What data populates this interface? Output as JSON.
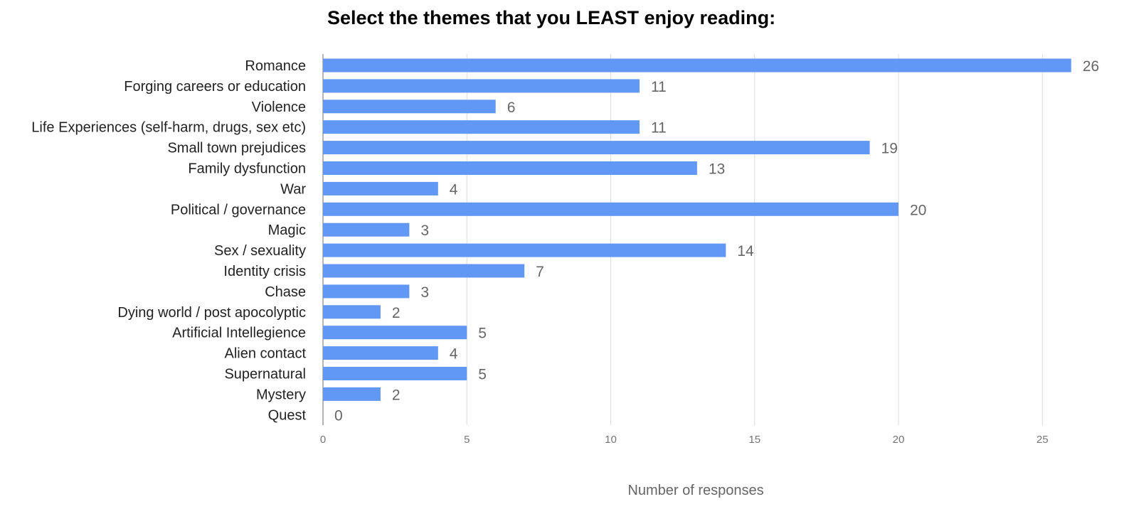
{
  "chart_data": {
    "type": "bar",
    "orientation": "horizontal",
    "title": "Select the themes that you LEAST enjoy reading:",
    "xlabel": "Number of responses",
    "ylabel": "",
    "xlim": [
      0,
      27
    ],
    "ticks": [
      0,
      5,
      10,
      15,
      20,
      25
    ],
    "grid": true,
    "legend": "none",
    "bar_color": "#6197f5",
    "categories": [
      "Romance",
      "Forging careers or education",
      "Violence",
      "Life Experiences (self-harm, drugs, sex etc)",
      "Small town prejudices",
      "Family dysfunction",
      "War",
      "Political / governance",
      "Magic",
      "Sex / sexuality",
      "Identity crisis",
      "Chase",
      "Dying world / post apocolyptic",
      "Artificial Intellegience",
      "Alien contact",
      "Supernatural",
      "Mystery",
      "Quest"
    ],
    "values": [
      26,
      11,
      6,
      11,
      19,
      13,
      4,
      20,
      3,
      14,
      7,
      3,
      2,
      5,
      4,
      5,
      2,
      0
    ]
  }
}
